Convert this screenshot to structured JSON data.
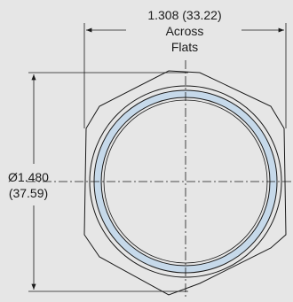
{
  "drawing": {
    "across_flats": {
      "value": "1.308 (33.22)",
      "line2": "Across",
      "line3": "Flats"
    },
    "diameter": {
      "value": "Ø1.480",
      "metric": "(37.59)"
    },
    "colors": {
      "background": "#e6e6e6",
      "ring_fill": "#c6d9ea",
      "outline": "#1a1a1a",
      "inner_face": "#e6e6e6"
    }
  }
}
